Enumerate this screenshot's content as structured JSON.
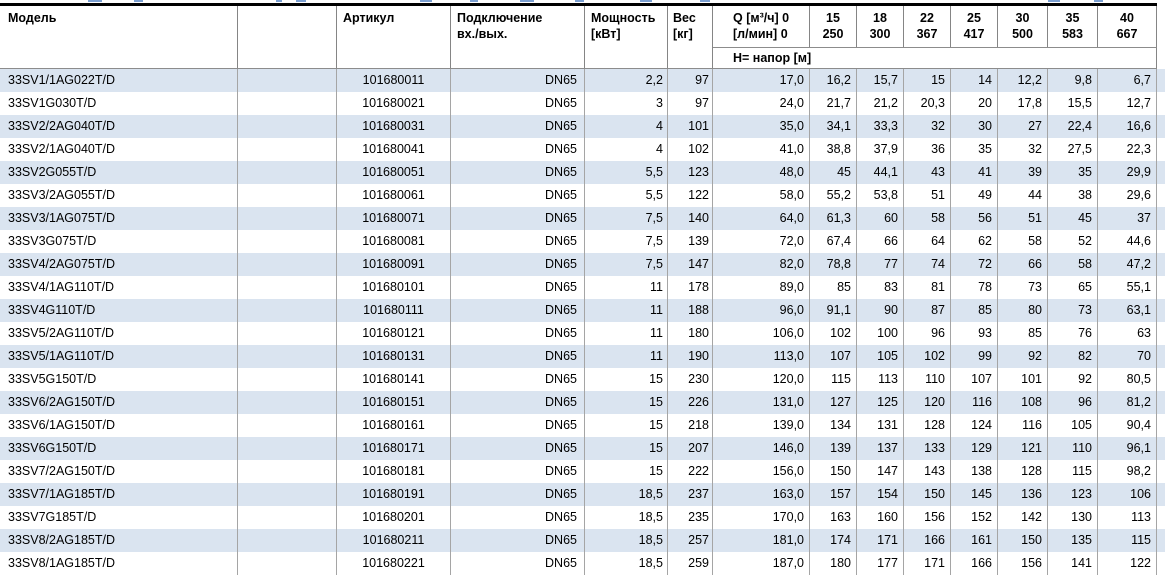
{
  "table": {
    "header": {
      "model": "Модель",
      "article": "Артикул",
      "connection": [
        "Подключение",
        "вх./вых."
      ],
      "power": [
        "Мощность",
        "[кВт]"
      ],
      "weight": [
        "Вес",
        "[кг]"
      ],
      "q": [
        "Q [м³/ч] 0",
        "[л/мин] 0"
      ],
      "flow_columns": [
        {
          "m3h": "15",
          "lmin": "250"
        },
        {
          "m3h": "18",
          "lmin": "300"
        },
        {
          "m3h": "22",
          "lmin": "367"
        },
        {
          "m3h": "25",
          "lmin": "417"
        },
        {
          "m3h": "30",
          "lmin": "500"
        },
        {
          "m3h": "35",
          "lmin": "583"
        },
        {
          "m3h": "40",
          "lmin": "667"
        }
      ],
      "head_label": "Н= напор [м]"
    },
    "rows": [
      {
        "model": "33SV1/1AG022T/D",
        "article": "101680011",
        "connection": "DN65",
        "power": "2,2",
        "weight": "97",
        "values": [
          "17,0",
          "16,2",
          "15,7",
          "15",
          "14",
          "12,2",
          "9,8",
          "6,7"
        ]
      },
      {
        "model": "33SV1G030T/D",
        "article": "101680021",
        "connection": "DN65",
        "power": "3",
        "weight": "97",
        "values": [
          "24,0",
          "21,7",
          "21,2",
          "20,3",
          "20",
          "17,8",
          "15,5",
          "12,7"
        ]
      },
      {
        "model": "33SV2/2AG040T/D",
        "article": "101680031",
        "connection": "DN65",
        "power": "4",
        "weight": "101",
        "values": [
          "35,0",
          "34,1",
          "33,3",
          "32",
          "30",
          "27",
          "22,4",
          "16,6"
        ]
      },
      {
        "model": "33SV2/1AG040T/D",
        "article": "101680041",
        "connection": "DN65",
        "power": "4",
        "weight": "102",
        "values": [
          "41,0",
          "38,8",
          "37,9",
          "36",
          "35",
          "32",
          "27,5",
          "22,3"
        ]
      },
      {
        "model": "33SV2G055T/D",
        "article": "101680051",
        "connection": "DN65",
        "power": "5,5",
        "weight": "123",
        "values": [
          "48,0",
          "45",
          "44,1",
          "43",
          "41",
          "39",
          "35",
          "29,9"
        ]
      },
      {
        "model": "33SV3/2AG055T/D",
        "article": "101680061",
        "connection": "DN65",
        "power": "5,5",
        "weight": "122",
        "values": [
          "58,0",
          "55,2",
          "53,8",
          "51",
          "49",
          "44",
          "38",
          "29,6"
        ]
      },
      {
        "model": "33SV3/1AG075T/D",
        "article": "101680071",
        "connection": "DN65",
        "power": "7,5",
        "weight": "140",
        "values": [
          "64,0",
          "61,3",
          "60",
          "58",
          "56",
          "51",
          "45",
          "37"
        ]
      },
      {
        "model": "33SV3G075T/D",
        "article": "101680081",
        "connection": "DN65",
        "power": "7,5",
        "weight": "139",
        "values": [
          "72,0",
          "67,4",
          "66",
          "64",
          "62",
          "58",
          "52",
          "44,6"
        ]
      },
      {
        "model": "33SV4/2AG075T/D",
        "article": "101680091",
        "connection": "DN65",
        "power": "7,5",
        "weight": "147",
        "values": [
          "82,0",
          "78,8",
          "77",
          "74",
          "72",
          "66",
          "58",
          "47,2"
        ]
      },
      {
        "model": "33SV4/1AG110T/D",
        "article": "101680101",
        "connection": "DN65",
        "power": "11",
        "weight": "178",
        "values": [
          "89,0",
          "85",
          "83",
          "81",
          "78",
          "73",
          "65",
          "55,1"
        ]
      },
      {
        "model": "33SV4G110T/D",
        "article": "101680111",
        "connection": "DN65",
        "power": "11",
        "weight": "188",
        "values": [
          "96,0",
          "91,1",
          "90",
          "87",
          "85",
          "80",
          "73",
          "63,1"
        ]
      },
      {
        "model": "33SV5/2AG110T/D",
        "article": "101680121",
        "connection": "DN65",
        "power": "11",
        "weight": "180",
        "values": [
          "106,0",
          "102",
          "100",
          "96",
          "93",
          "85",
          "76",
          "63"
        ]
      },
      {
        "model": "33SV5/1AG110T/D",
        "article": "101680131",
        "connection": "DN65",
        "power": "11",
        "weight": "190",
        "values": [
          "113,0",
          "107",
          "105",
          "102",
          "99",
          "92",
          "82",
          "70"
        ]
      },
      {
        "model": "33SV5G150T/D",
        "article": "101680141",
        "connection": "DN65",
        "power": "15",
        "weight": "230",
        "values": [
          "120,0",
          "115",
          "113",
          "110",
          "107",
          "101",
          "92",
          "80,5"
        ]
      },
      {
        "model": "33SV6/2AG150T/D",
        "article": "101680151",
        "connection": "DN65",
        "power": "15",
        "weight": "226",
        "values": [
          "131,0",
          "127",
          "125",
          "120",
          "116",
          "108",
          "96",
          "81,2"
        ]
      },
      {
        "model": "33SV6/1AG150T/D",
        "article": "101680161",
        "connection": "DN65",
        "power": "15",
        "weight": "218",
        "values": [
          "139,0",
          "134",
          "131",
          "128",
          "124",
          "116",
          "105",
          "90,4"
        ]
      },
      {
        "model": "33SV6G150T/D",
        "article": "101680171",
        "connection": "DN65",
        "power": "15",
        "weight": "207",
        "values": [
          "146,0",
          "139",
          "137",
          "133",
          "129",
          "121",
          "110",
          "96,1"
        ]
      },
      {
        "model": "33SV7/2AG150T/D",
        "article": "101680181",
        "connection": "DN65",
        "power": "15",
        "weight": "222",
        "values": [
          "156,0",
          "150",
          "147",
          "143",
          "138",
          "128",
          "115",
          "98,2"
        ]
      },
      {
        "model": "33SV7/1AG185T/D",
        "article": "101680191",
        "connection": "DN65",
        "power": "18,5",
        "weight": "237",
        "values": [
          "163,0",
          "157",
          "154",
          "150",
          "145",
          "136",
          "123",
          "106"
        ]
      },
      {
        "model": "33SV7G185T/D",
        "article": "101680201",
        "connection": "DN65",
        "power": "18,5",
        "weight": "235",
        "values": [
          "170,0",
          "163",
          "160",
          "156",
          "152",
          "142",
          "130",
          "113"
        ]
      },
      {
        "model": "33SV8/2AG185T/D",
        "article": "101680211",
        "connection": "DN65",
        "power": "18,5",
        "weight": "257",
        "values": [
          "181,0",
          "174",
          "171",
          "166",
          "161",
          "150",
          "135",
          "115"
        ]
      },
      {
        "model": "33SV8/1AG185T/D",
        "article": "101680221",
        "connection": "DN65",
        "power": "18,5",
        "weight": "259",
        "values": [
          "187,0",
          "180",
          "177",
          "171",
          "166",
          "156",
          "141",
          "122"
        ]
      }
    ]
  }
}
